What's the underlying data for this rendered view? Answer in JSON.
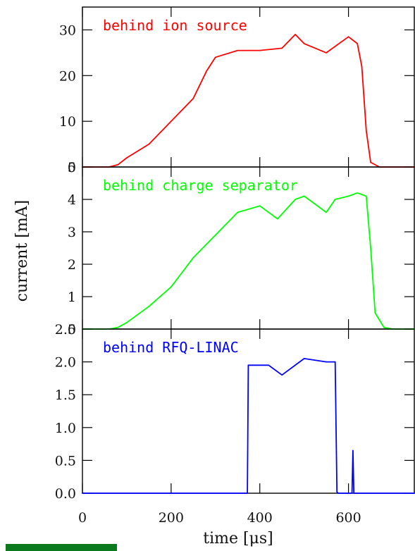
{
  "chart_data": {
    "type": "line",
    "x_axis": {
      "label": "time [μs]",
      "range": [
        0,
        750
      ],
      "ticks": [
        0,
        200,
        400,
        600
      ],
      "tick_labels": [
        "0",
        "200",
        "400",
        "600"
      ]
    },
    "y_axis_label": "current [mA]",
    "panels": [
      {
        "label": "behind ion source",
        "color": "#ff0000",
        "ylim": [
          0,
          35
        ],
        "yticks": [
          0,
          10,
          20,
          30
        ],
        "ytick_labels": [
          "0",
          "10",
          "20",
          "30"
        ],
        "x": [
          0,
          60,
          80,
          100,
          150,
          200,
          250,
          280,
          300,
          350,
          400,
          450,
          480,
          500,
          550,
          600,
          620,
          630,
          640,
          650,
          670,
          700,
          750
        ],
        "y": [
          0,
          0,
          0.5,
          2,
          5,
          10,
          15,
          21,
          24,
          25.5,
          25.5,
          26,
          29,
          27,
          25,
          28.5,
          27,
          22,
          8,
          1,
          0,
          0,
          0
        ]
      },
      {
        "label": "behind charge separator",
        "color": "#00ff00",
        "ylim": [
          0,
          5
        ],
        "yticks": [
          0,
          1,
          2,
          3,
          4,
          5
        ],
        "ytick_labels": [
          "0",
          "1",
          "2",
          "3",
          "4",
          "5"
        ],
        "x": [
          0,
          60,
          80,
          100,
          150,
          200,
          250,
          300,
          350,
          400,
          440,
          480,
          500,
          550,
          570,
          600,
          620,
          640,
          650,
          660,
          680,
          700,
          750
        ],
        "y": [
          0,
          0,
          0.05,
          0.2,
          0.7,
          1.3,
          2.2,
          2.9,
          3.6,
          3.8,
          3.4,
          4.0,
          4.1,
          3.6,
          4.0,
          4.1,
          4.2,
          4.1,
          2.5,
          0.5,
          0.05,
          0,
          0
        ]
      },
      {
        "label": "behind RFQ-LINAC",
        "color": "#0000ff",
        "ylim": [
          0,
          2.5
        ],
        "yticks": [
          0,
          0.5,
          1.0,
          1.5,
          2.0,
          2.5
        ],
        "ytick_labels": [
          "0.0",
          "0.5",
          "1.0",
          "1.5",
          "2.0",
          "2.5"
        ],
        "x": [
          0,
          372,
          374,
          380,
          420,
          450,
          500,
          550,
          570,
          574,
          577,
          608,
          610,
          612,
          750
        ],
        "y": [
          0,
          0,
          1.95,
          1.95,
          1.95,
          1.8,
          2.05,
          2.0,
          2.0,
          0.02,
          0,
          0,
          0.65,
          0,
          0
        ]
      }
    ]
  }
}
